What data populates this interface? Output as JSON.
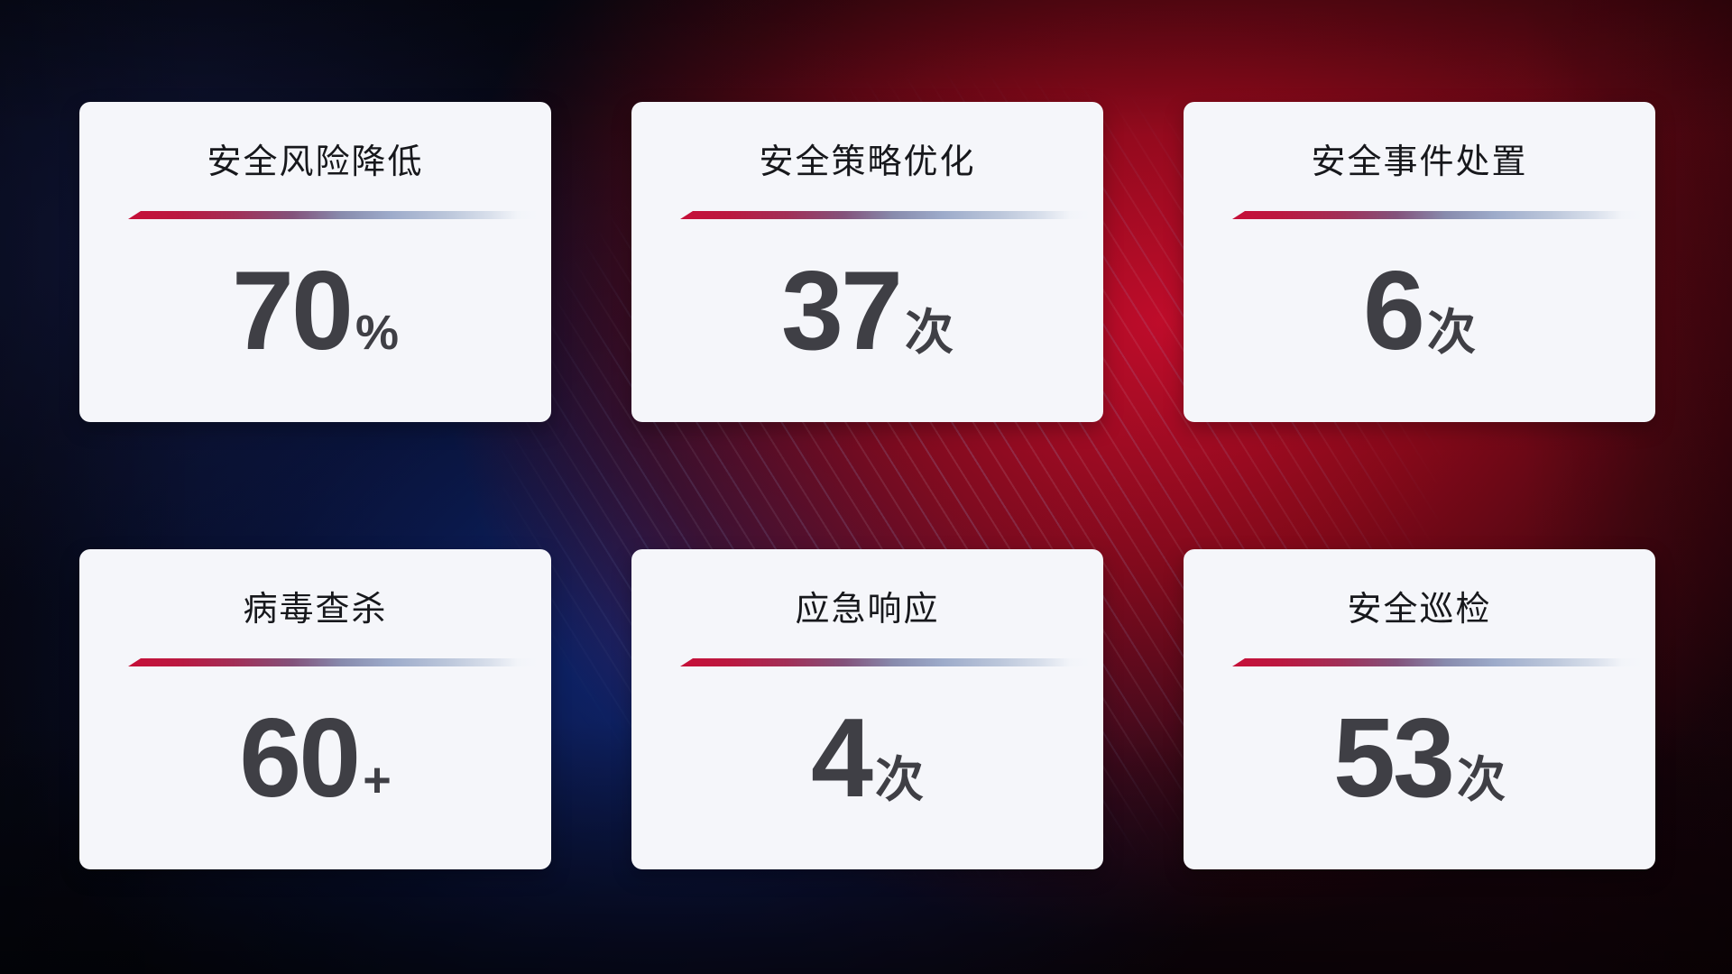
{
  "cards": [
    {
      "title": "安全风险降低",
      "value": "70",
      "suffix": "%"
    },
    {
      "title": "安全策略优化",
      "value": "37",
      "suffix": "次"
    },
    {
      "title": "安全事件处置",
      "value": "6",
      "suffix": "次"
    },
    {
      "title": "病毒查杀",
      "value": "60",
      "suffix": "+"
    },
    {
      "title": "应急响应",
      "value": "4",
      "suffix": "次"
    },
    {
      "title": "安全巡检",
      "value": "53",
      "suffix": "次"
    }
  ],
  "colors": {
    "card_background": "#f5f6fa",
    "title_text": "#17181c",
    "value_text": "#3f3f45",
    "divider_red": "#c60f38",
    "divider_blue": "#9dabca",
    "background_navy": "#0a0d22",
    "background_blue_glow": "#112e8a",
    "background_red_glow": "#c60d2c"
  }
}
